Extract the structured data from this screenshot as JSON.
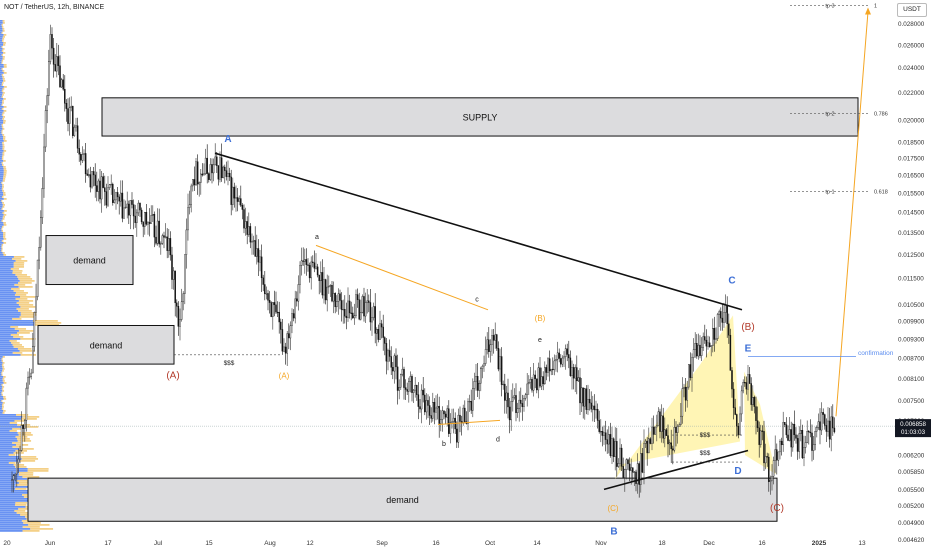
{
  "header": {
    "title": "NOT / TetherUS, 12h, BINANCE",
    "currency_button": "USDT"
  },
  "price_tag": {
    "value": "0.006858",
    "countdown": "01:03:03",
    "color": "#131722"
  },
  "colors": {
    "up": "#26a69a",
    "down": "#222222",
    "zone_fill": "#dcdcde",
    "trendline": "#111111",
    "orange": "#f5a623",
    "blue_label": "#3d6fd6",
    "red_label": "#b23a2a",
    "triangle_fill": "#fff3a8",
    "confirmation_line": "#5b8def",
    "volume_profile_blue": "#4f7ff0",
    "volume_profile_orange": "#f0c060"
  },
  "chart_data": {
    "type": "candlestick",
    "title": "NOT / TetherUS, 12h, BINANCE",
    "y_axis": {
      "scale": "log",
      "range": [
        0.00445,
        0.0304
      ],
      "ticks": [
        "0.028000",
        "0.026000",
        "0.024000",
        "0.022000",
        "0.020000",
        "0.018500",
        "0.017500",
        "0.016500",
        "0.015500",
        "0.014500",
        "0.013500",
        "0.012500",
        "0.011500",
        "0.010500",
        "0.009900",
        "0.009300",
        "0.008700",
        "0.008100",
        "0.007500",
        "0.007000",
        "0.006200",
        "0.005850",
        "0.005500",
        "0.005200",
        "0.004900",
        "0.004620"
      ]
    },
    "x_axis": {
      "ticks": [
        "20",
        "Jun",
        "17",
        "Jul",
        "15",
        "Aug",
        "12",
        "Sep",
        "16",
        "Oct",
        "14",
        "Nov",
        "18",
        "Dec",
        "16",
        "2025",
        "13"
      ]
    },
    "price_path": {
      "description_points": [
        {
          "date": "May 20",
          "price": 0.005
        },
        {
          "date": "May 27",
          "price": 0.0085
        },
        {
          "date": "Jun 1",
          "price": 0.0265
        },
        {
          "date": "Jun 5",
          "price": 0.0215
        },
        {
          "date": "Jun 12",
          "price": 0.0165
        },
        {
          "date": "Jun 20",
          "price": 0.0148
        },
        {
          "date": "Jun 28",
          "price": 0.014
        },
        {
          "date": "Jul 4",
          "price": 0.0128
        },
        {
          "date": "Jul 7",
          "price": 0.0095
        },
        {
          "date": "Jul 10",
          "price": 0.0165
        },
        {
          "date": "Jul 18",
          "price": 0.017
        },
        {
          "date": "Jul 25",
          "price": 0.014
        },
        {
          "date": "Aug 5",
          "price": 0.009
        },
        {
          "date": "Aug 10",
          "price": 0.0123
        },
        {
          "date": "Aug 22",
          "price": 0.0103
        },
        {
          "date": "Aug 28",
          "price": 0.0105
        },
        {
          "date": "Sep 5",
          "price": 0.0082
        },
        {
          "date": "Sep 15",
          "price": 0.0073
        },
        {
          "date": "Sep 22",
          "price": 0.0068
        },
        {
          "date": "Sep 28",
          "price": 0.008
        },
        {
          "date": "Oct 2",
          "price": 0.0097
        },
        {
          "date": "Oct 6",
          "price": 0.0072
        },
        {
          "date": "Oct 15",
          "price": 0.0082
        },
        {
          "date": "Oct 22",
          "price": 0.0087
        },
        {
          "date": "Oct 28",
          "price": 0.0074
        },
        {
          "date": "Nov 4",
          "price": 0.0063
        },
        {
          "date": "Nov 11",
          "price": 0.0057
        },
        {
          "date": "Nov 16",
          "price": 0.0071
        },
        {
          "date": "Nov 21",
          "price": 0.0066
        },
        {
          "date": "Nov 27",
          "price": 0.0088
        },
        {
          "date": "Dec 6",
          "price": 0.0101
        },
        {
          "date": "Dec 9",
          "price": 0.0065
        },
        {
          "date": "Dec 11",
          "price": 0.0083
        },
        {
          "date": "Dec 15",
          "price": 0.0068
        },
        {
          "date": "Dec 18",
          "price": 0.0058
        },
        {
          "date": "Dec 22",
          "price": 0.0068
        },
        {
          "date": "Dec 28",
          "price": 0.0064
        },
        {
          "date": "Jan 2",
          "price": 0.0069
        },
        {
          "date": "Jan 5",
          "price": 0.00686
        }
      ]
    },
    "zones": [
      {
        "label": "SUPPLY",
        "top": 0.0216,
        "bottom": 0.0189
      },
      {
        "label": "demand",
        "top": 0.01335,
        "bottom": 0.01125
      },
      {
        "label": "demand",
        "top": 0.00975,
        "bottom": 0.00852
      },
      {
        "label": "demand",
        "top": 0.00572,
        "bottom": 0.00492
      }
    ],
    "fib_levels": [
      {
        "label": "tp 3",
        "value": "1",
        "price": 0.0298
      },
      {
        "label": "tp 2",
        "value": "0.786",
        "price": 0.02045
      },
      {
        "label": "tp 1",
        "value": "0.618",
        "price": 0.01558
      }
    ],
    "wave_labels": [
      "A",
      "B",
      "C",
      "D",
      "E",
      "(A)",
      "(B)",
      "(C)",
      "(A)",
      "(B)",
      "(C)",
      "a",
      "b",
      "c",
      "d",
      "e"
    ],
    "annotations": [
      "$$$",
      "$$$",
      "$$$",
      "confirmation"
    ]
  }
}
